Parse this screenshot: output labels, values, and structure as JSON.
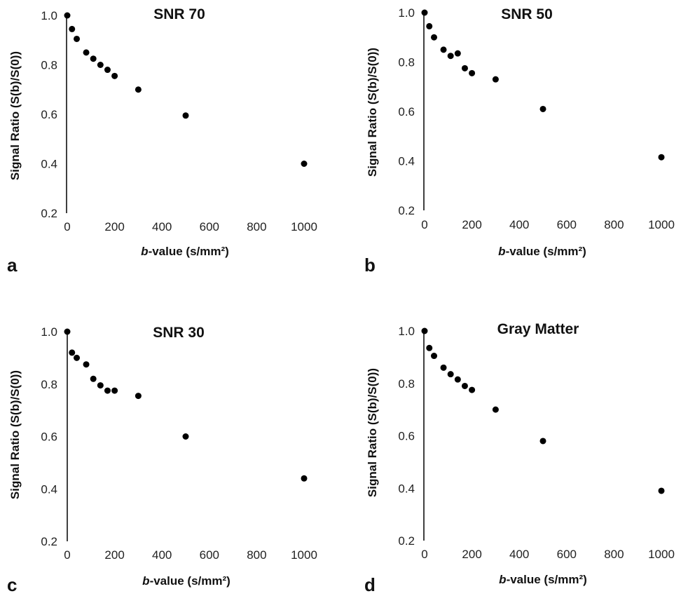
{
  "chart_data": [
    {
      "type": "scatter",
      "panel_label": "a",
      "title": "SNR 70",
      "xlabel": "b-value (s/mm²)",
      "ylabel": "Signal Ratio (S(b)/S(0))",
      "xlim": [
        0,
        1000
      ],
      "ylim": [
        0.2,
        1.0
      ],
      "xticks": [
        0,
        200,
        400,
        600,
        800,
        1000
      ],
      "yticks": [
        0.2,
        0.4,
        0.6,
        0.8,
        1.0
      ],
      "xtick_labels": [
        "0",
        "200",
        "400",
        "600",
        "800",
        "1000"
      ],
      "ytick_labels": [
        "0.2",
        "0.4",
        "0.6",
        "0.8",
        "1.0"
      ],
      "grid": false,
      "point_color": "#000000",
      "x": [
        0,
        20,
        40,
        80,
        110,
        140,
        170,
        200,
        300,
        500,
        1000
      ],
      "y": [
        1.0,
        0.945,
        0.905,
        0.85,
        0.825,
        0.8,
        0.78,
        0.755,
        0.7,
        0.595,
        0.4
      ]
    },
    {
      "type": "scatter",
      "panel_label": "b",
      "title": "SNR 50",
      "xlabel": "b-value (s/mm²)",
      "ylabel": "Signal Ratio (S(b)/S(0))",
      "xlim": [
        0,
        1000
      ],
      "ylim": [
        0.2,
        1.0
      ],
      "xticks": [
        0,
        200,
        400,
        600,
        800,
        1000
      ],
      "yticks": [
        0.2,
        0.4,
        0.6,
        0.8,
        1.0
      ],
      "xtick_labels": [
        "0",
        "200",
        "400",
        "600",
        "800",
        "1000"
      ],
      "ytick_labels": [
        "0.2",
        "0.4",
        "0.6",
        "0.8",
        "1.0"
      ],
      "grid": false,
      "point_color": "#000000",
      "x": [
        0,
        20,
        40,
        80,
        110,
        140,
        170,
        200,
        300,
        500,
        1000
      ],
      "y": [
        1.0,
        0.945,
        0.9,
        0.85,
        0.825,
        0.835,
        0.775,
        0.755,
        0.73,
        0.61,
        0.415
      ]
    },
    {
      "type": "scatter",
      "panel_label": "c",
      "title": "SNR 30",
      "xlabel": "b-value (s/mm²)",
      "ylabel": "Signal Ratio (S(b)/S(0))",
      "xlim": [
        0,
        1000
      ],
      "ylim": [
        0.2,
        1.0
      ],
      "xticks": [
        0,
        200,
        400,
        600,
        800,
        1000
      ],
      "yticks": [
        0.2,
        0.4,
        0.6,
        0.8,
        1.0
      ],
      "xtick_labels": [
        "0",
        "200",
        "400",
        "600",
        "800",
        "1000"
      ],
      "ytick_labels": [
        "0.2",
        "0.4",
        "0.6",
        "0.8",
        "1.0"
      ],
      "grid": false,
      "point_color": "#000000",
      "x": [
        0,
        20,
        40,
        80,
        110,
        140,
        170,
        200,
        300,
        500,
        1000
      ],
      "y": [
        1.0,
        0.92,
        0.9,
        0.875,
        0.82,
        0.795,
        0.775,
        0.775,
        0.755,
        0.6,
        0.44
      ]
    },
    {
      "type": "scatter",
      "panel_label": "d",
      "title": "Gray Matter",
      "xlabel": "b-value (s/mm²)",
      "ylabel": "Signal Ratio (S(b)/S(0))",
      "xlim": [
        0,
        1000
      ],
      "ylim": [
        0.2,
        1.0
      ],
      "xticks": [
        0,
        200,
        400,
        600,
        800,
        1000
      ],
      "yticks": [
        0.2,
        0.4,
        0.6,
        0.8,
        1.0
      ],
      "xtick_labels": [
        "0",
        "200",
        "400",
        "600",
        "800",
        "1000"
      ],
      "ytick_labels": [
        "0.2",
        "0.4",
        "0.6",
        "0.8",
        "1.0"
      ],
      "grid": false,
      "point_color": "#000000",
      "x": [
        0,
        20,
        40,
        80,
        110,
        140,
        170,
        200,
        300,
        500,
        1000
      ],
      "y": [
        1.0,
        0.935,
        0.905,
        0.86,
        0.835,
        0.815,
        0.79,
        0.775,
        0.7,
        0.58,
        0.39
      ]
    }
  ]
}
